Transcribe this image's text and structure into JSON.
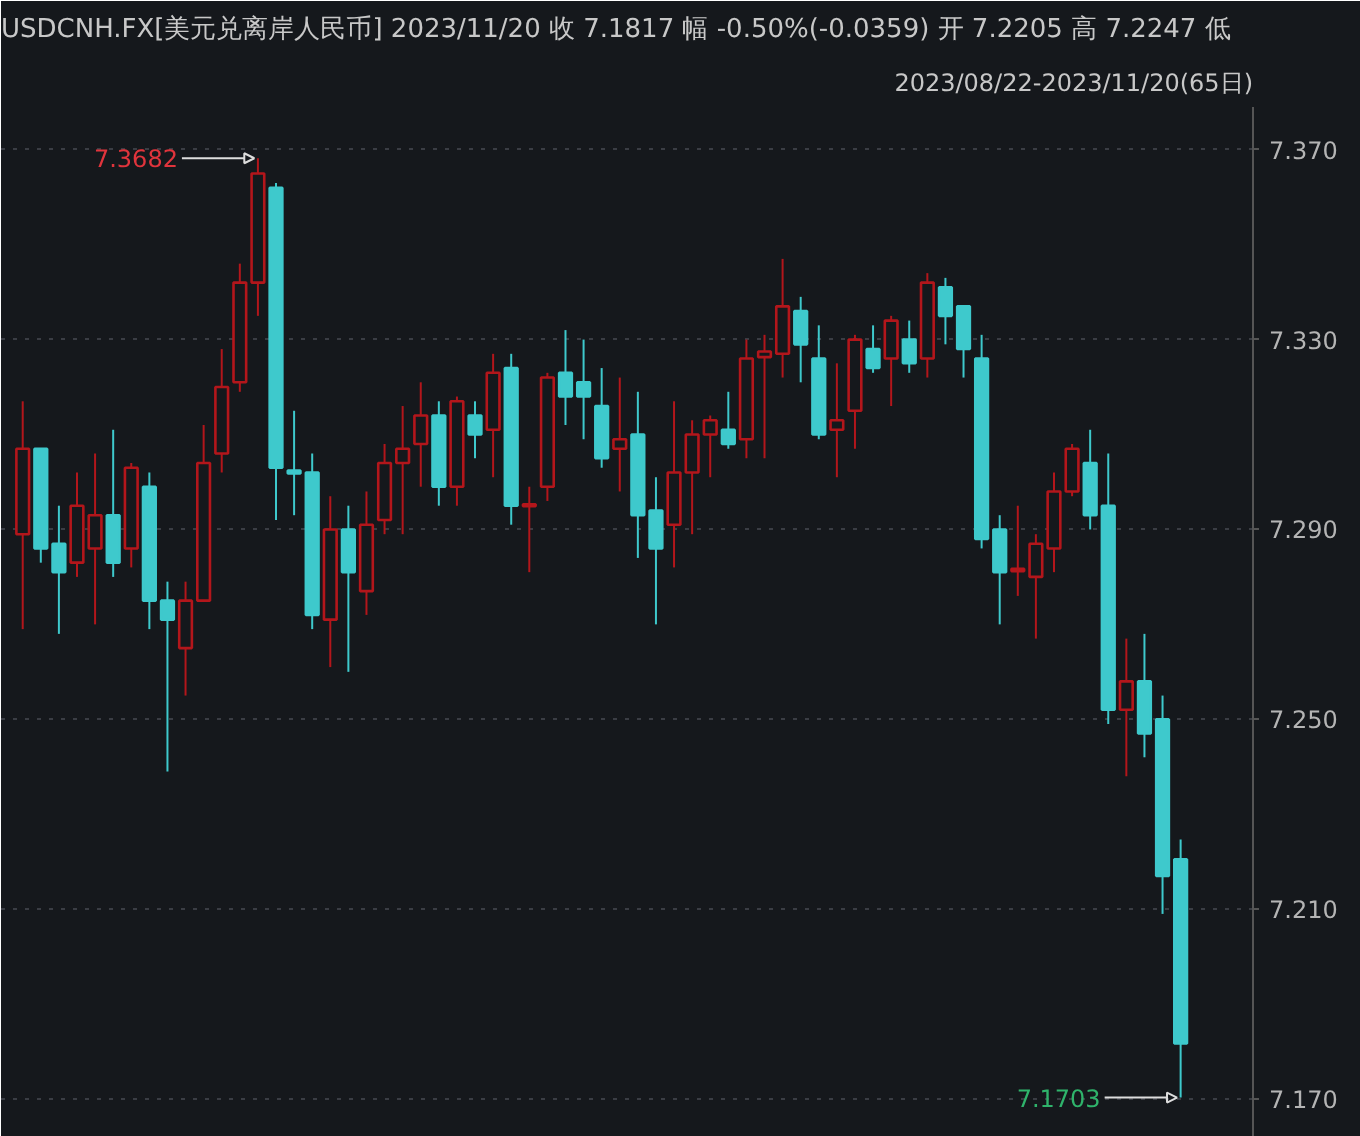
{
  "chart_data": {
    "type": "candlestick",
    "title": "USDCNH.FX[美元兑离岸人民币]   2023/11/20   收 7.1817   幅 -0.50%(-0.0359)   开 7.2205   高 7.2247   低",
    "subtitle": "2023/08/22-2023/11/20(65日)",
    "categories": [
      null,
      null,
      null,
      null,
      null,
      null,
      null,
      null,
      null,
      null,
      null,
      null,
      null,
      null,
      null,
      null,
      null,
      null,
      null,
      null,
      null,
      null,
      null,
      null,
      null,
      null,
      null,
      null,
      null,
      null,
      null,
      null,
      null,
      null,
      null,
      null,
      null,
      null,
      null,
      null,
      null,
      null,
      null,
      null,
      null,
      null,
      null,
      null,
      null,
      null,
      null,
      null,
      null,
      null,
      null,
      null,
      null,
      null,
      null,
      null,
      null,
      null,
      null,
      null,
      null
    ],
    "ohlc": [
      [
        7.289,
        7.317,
        7.269,
        7.307
      ],
      [
        7.307,
        7.307,
        7.283,
        7.286
      ],
      [
        7.287,
        7.295,
        7.268,
        7.281
      ],
      [
        7.283,
        7.302,
        7.28,
        7.295
      ],
      [
        7.286,
        7.306,
        7.27,
        7.293
      ],
      [
        7.293,
        7.311,
        7.28,
        7.283
      ],
      [
        7.286,
        7.304,
        7.282,
        7.303
      ],
      [
        7.299,
        7.302,
        7.269,
        7.275
      ],
      [
        7.275,
        7.279,
        7.239,
        7.271
      ],
      [
        7.265,
        7.279,
        7.255,
        7.275
      ],
      [
        7.275,
        7.312,
        7.275,
        7.304
      ],
      [
        7.306,
        7.328,
        7.302,
        7.32
      ],
      [
        7.321,
        7.346,
        7.319,
        7.342
      ],
      [
        7.342,
        7.3682,
        7.335,
        7.365
      ],
      [
        7.362,
        7.363,
        7.292,
        7.303
      ],
      [
        7.3024,
        7.315,
        7.293,
        7.3018
      ],
      [
        7.302,
        7.306,
        7.269,
        7.272
      ],
      [
        7.271,
        7.297,
        7.261,
        7.29
      ],
      [
        7.29,
        7.295,
        7.26,
        7.281
      ],
      [
        7.277,
        7.298,
        7.272,
        7.291
      ],
      [
        7.292,
        7.308,
        7.289,
        7.304
      ],
      [
        7.304,
        7.316,
        7.289,
        7.307
      ],
      [
        7.308,
        7.321,
        7.299,
        7.314
      ],
      [
        7.314,
        7.317,
        7.295,
        7.299
      ],
      [
        7.299,
        7.318,
        7.295,
        7.317
      ],
      [
        7.314,
        7.317,
        7.305,
        7.31
      ],
      [
        7.311,
        7.327,
        7.301,
        7.323
      ],
      [
        7.324,
        7.327,
        7.291,
        7.295
      ],
      [
        7.2949,
        7.299,
        7.281,
        7.2953
      ],
      [
        7.299,
        7.323,
        7.296,
        7.322
      ],
      [
        7.323,
        7.332,
        7.312,
        7.318
      ],
      [
        7.321,
        7.33,
        7.309,
        7.318
      ],
      [
        7.316,
        7.324,
        7.303,
        7.305
      ],
      [
        7.307,
        7.322,
        7.298,
        7.309
      ],
      [
        7.31,
        7.319,
        7.284,
        7.293
      ],
      [
        7.294,
        7.301,
        7.27,
        7.286
      ],
      [
        7.291,
        7.317,
        7.282,
        7.302
      ],
      [
        7.302,
        7.313,
        7.289,
        7.31
      ],
      [
        7.31,
        7.314,
        7.301,
        7.313
      ],
      [
        7.311,
        7.319,
        7.307,
        7.308
      ],
      [
        7.309,
        7.33,
        7.305,
        7.326
      ],
      [
        7.3263,
        7.331,
        7.305,
        7.3275
      ],
      [
        7.327,
        7.347,
        7.322,
        7.337
      ],
      [
        7.336,
        7.339,
        7.321,
        7.329
      ],
      [
        7.326,
        7.333,
        7.309,
        7.31
      ],
      [
        7.311,
        7.325,
        7.301,
        7.313
      ],
      [
        7.315,
        7.331,
        7.307,
        7.33
      ],
      [
        7.328,
        7.333,
        7.323,
        7.324
      ],
      [
        7.326,
        7.335,
        7.316,
        7.334
      ],
      [
        7.33,
        7.334,
        7.323,
        7.325
      ],
      [
        7.326,
        7.344,
        7.322,
        7.342
      ],
      [
        7.341,
        7.343,
        7.329,
        7.335
      ],
      [
        7.337,
        7.337,
        7.322,
        7.328
      ],
      [
        7.326,
        7.331,
        7.286,
        7.288
      ],
      [
        7.29,
        7.293,
        7.27,
        7.281
      ],
      [
        7.2812,
        7.295,
        7.276,
        7.2817
      ],
      [
        7.28,
        7.289,
        7.267,
        7.287
      ],
      [
        7.286,
        7.302,
        7.281,
        7.298
      ],
      [
        7.298,
        7.308,
        7.297,
        7.307
      ],
      [
        7.304,
        7.311,
        7.29,
        7.293
      ],
      [
        7.295,
        7.306,
        7.249,
        7.252
      ],
      [
        7.252,
        7.267,
        7.238,
        7.258
      ],
      [
        7.258,
        7.268,
        7.242,
        7.247
      ],
      [
        7.25,
        7.255,
        7.209,
        7.217
      ],
      [
        7.2205,
        7.2247,
        7.1703,
        7.1817
      ]
    ],
    "colors": [
      "#b3161b",
      "#3ec9cc",
      "#3ec9cc",
      "#b3161b",
      "#b3161b",
      "#3ec9cc",
      "#b3161b",
      "#3ec9cc",
      "#3ec9cc",
      "#b3161b",
      "#b3161b",
      "#b3161b",
      "#b3161b",
      "#b3161b",
      "#3ec9cc",
      "#3ec9cc",
      "#3ec9cc",
      "#b3161b",
      "#3ec9cc",
      "#b3161b",
      "#b3161b",
      "#b3161b",
      "#b3161b",
      "#3ec9cc",
      "#b3161b",
      "#3ec9cc",
      "#b3161b",
      "#3ec9cc",
      "#b3161b",
      "#b3161b",
      "#3ec9cc",
      "#3ec9cc",
      "#3ec9cc",
      "#b3161b",
      "#3ec9cc",
      "#3ec9cc",
      "#b3161b",
      "#b3161b",
      "#b3161b",
      "#3ec9cc",
      "#b3161b",
      "#b3161b",
      "#b3161b",
      "#3ec9cc",
      "#3ec9cc",
      "#b3161b",
      "#b3161b",
      "#3ec9cc",
      "#b3161b",
      "#3ec9cc",
      "#b3161b",
      "#3ec9cc",
      "#3ec9cc",
      "#3ec9cc",
      "#3ec9cc",
      "#b3161b",
      "#b3161b",
      "#b3161b",
      "#b3161b",
      "#3ec9cc",
      "#3ec9cc",
      "#b3161b",
      "#3ec9cc",
      "#3ec9cc",
      "#3ec9cc"
    ],
    "ylim": [
      7.162,
      7.379
    ],
    "yticks": [
      {
        "value": 7.37,
        "label": "7.370"
      },
      {
        "value": 7.33,
        "label": "7.330"
      },
      {
        "value": 7.29,
        "label": "7.290"
      },
      {
        "value": 7.25,
        "label": "7.250"
      },
      {
        "value": 7.21,
        "label": "7.210"
      },
      {
        "value": 7.17,
        "label": "7.170"
      }
    ],
    "grid": "y",
    "annotations": [
      "7.3682",
      "7.1703"
    ]
  }
}
